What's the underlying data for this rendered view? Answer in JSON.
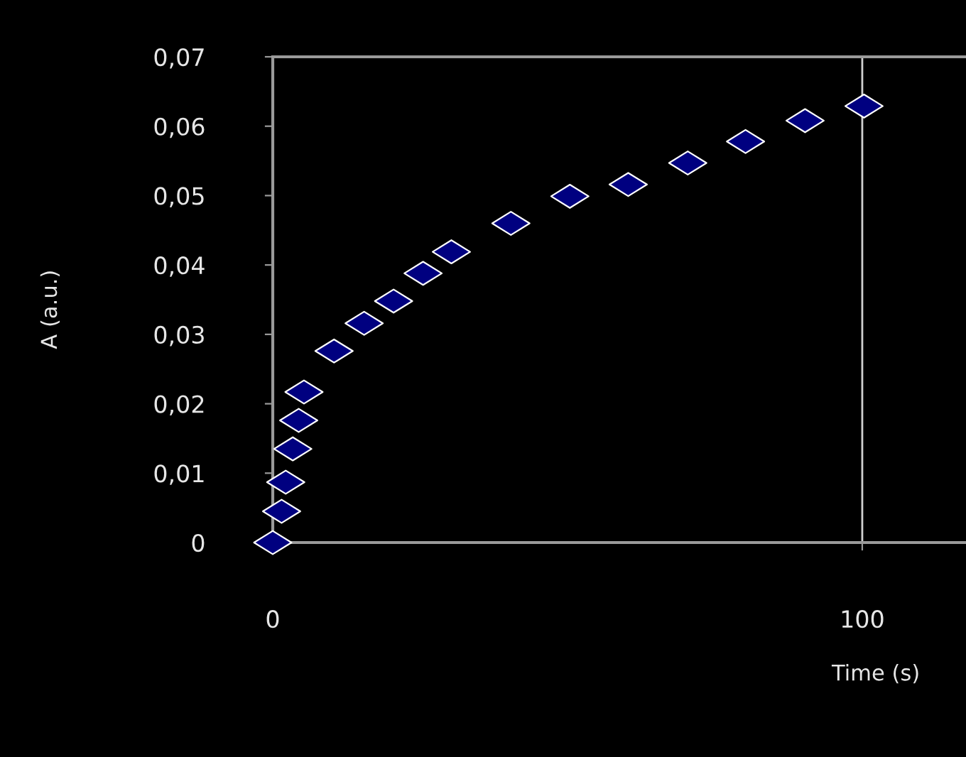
{
  "chart_data": {
    "type": "scatter",
    "xlabel": "Time (s)",
    "ylabel": "A (a.u.)",
    "x": [
      0,
      1.5,
      2.2,
      3.4,
      4.4,
      5.3,
      10.4,
      15.5,
      20.5,
      25.5,
      30.3,
      40.4,
      50.4,
      60.3,
      70.4,
      80.2,
      90.3,
      100.3
    ],
    "values": [
      0,
      0.0045,
      0.0087,
      0.0135,
      0.0176,
      0.0217,
      0.0276,
      0.0316,
      0.0348,
      0.0388,
      0.0419,
      0.046,
      0.0499,
      0.0516,
      0.0547,
      0.0578,
      0.0608,
      0.0629
    ],
    "color": "#000080",
    "marker": "diamond",
    "xlim": [
      0,
      117.6
    ],
    "xticks": [
      0,
      100
    ],
    "ylim": [
      0,
      0.07
    ],
    "yticks": [
      0,
      {
        "value": 0.01,
        "label": "0,01"
      },
      {
        "value": 0.02,
        "label": "0,02"
      },
      {
        "value": 0.03,
        "label": "0,03"
      },
      {
        "value": 0.04,
        "label": "0,04"
      },
      {
        "value": 0.05,
        "label": "0,05"
      },
      {
        "value": 0.06,
        "label": "0,06"
      },
      {
        "value": 0.07,
        "label": "0,07"
      }
    ],
    "grid": "x"
  }
}
